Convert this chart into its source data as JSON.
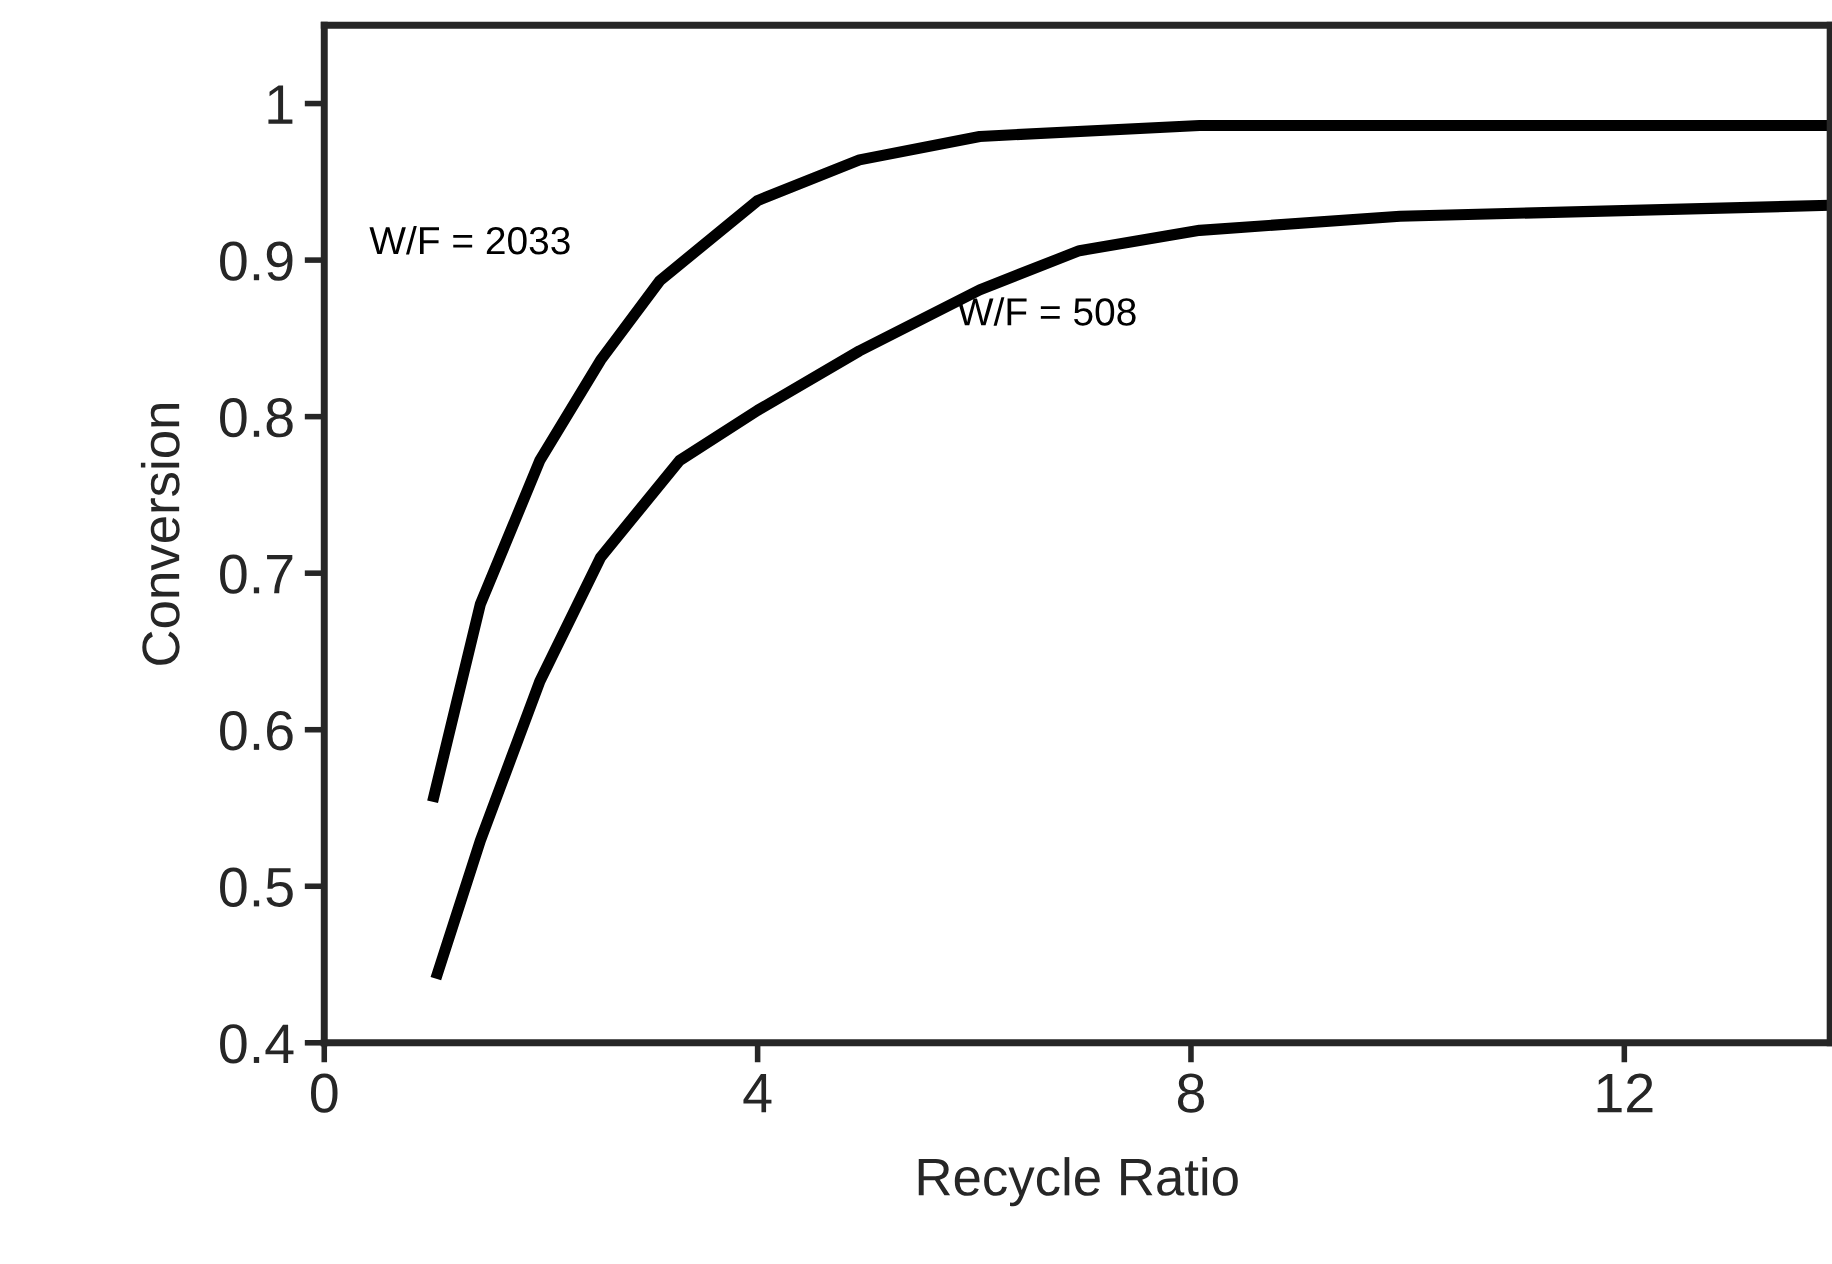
{
  "chart_data": {
    "type": "line",
    "xlabel": "Recycle Ratio",
    "ylabel": "Conversion",
    "xlim": [
      0,
      13.9
    ],
    "ylim": [
      0.4,
      1.05
    ],
    "xticks": [
      0,
      4,
      8,
      12
    ],
    "yticks": [
      0.4,
      0.5,
      0.6,
      0.7,
      0.8,
      0.9,
      1
    ],
    "grid": false,
    "legend": false,
    "marker": "none",
    "line_style": "solid",
    "series": [
      {
        "color": "#000000",
        "x": [
          1.0,
          1.44,
          1.99,
          2.55,
          3.1,
          4,
          4.94,
          6.05,
          8.08,
          13.9
        ],
        "values": [
          0.554,
          0.68,
          0.772,
          0.836,
          0.887,
          0.938,
          0.964,
          0.979,
          0.986,
          0.986
        ]
      },
      {
        "color": "#000000",
        "x": [
          1.03,
          1.44,
          1.99,
          2.55,
          3.28,
          4,
          4.94,
          6.05,
          6.97,
          8.08,
          9.93,
          13.9
        ],
        "values": [
          0.441,
          0.529,
          0.631,
          0.71,
          0.772,
          0.804,
          0.842,
          0.881,
          0.906,
          0.919,
          0.928,
          0.935
        ]
      }
    ],
    "annotations": [
      "W/F = 2033",
      "W/F = 508"
    ]
  }
}
